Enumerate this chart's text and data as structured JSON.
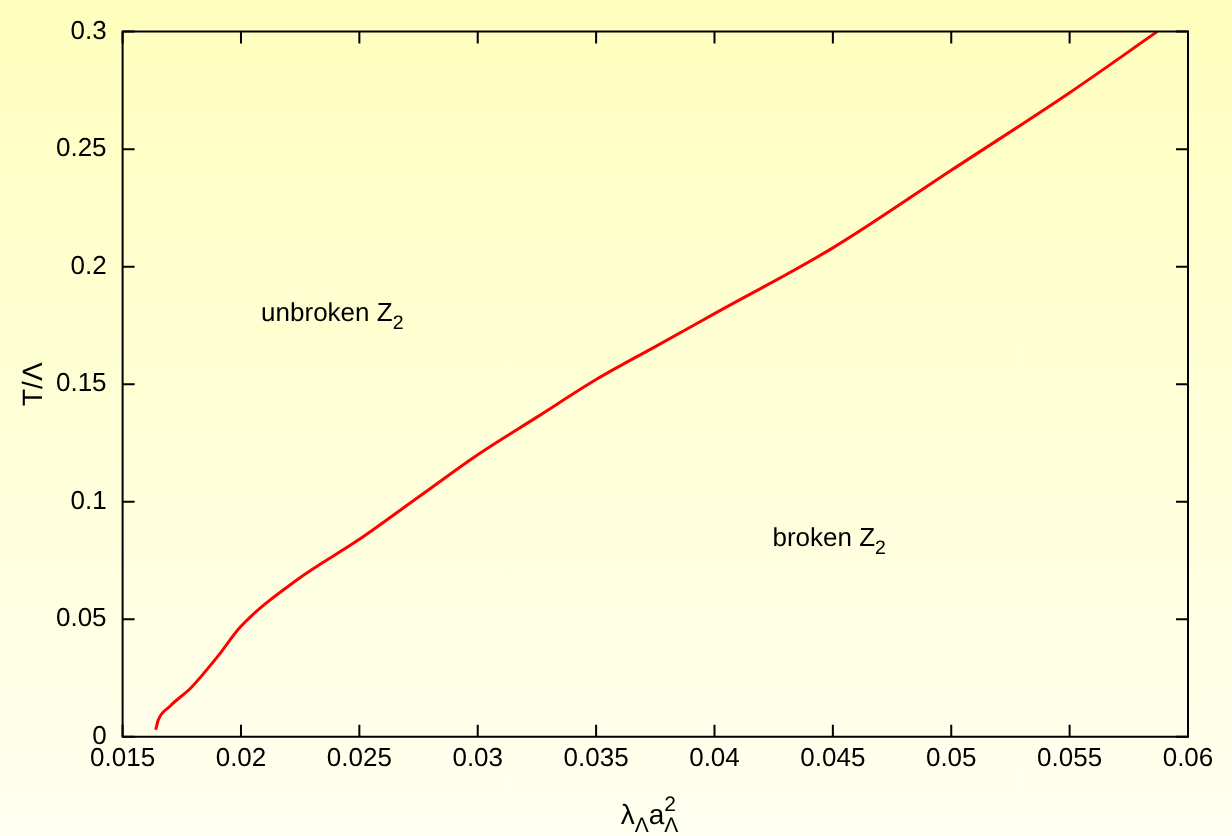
{
  "chart_data": {
    "type": "line",
    "xlabel": "λ$_{Λ}$a$_{Λ}$$^{2}$",
    "ylabel": "T/Λ",
    "x": [
      0.0164,
      0.0165,
      0.017,
      0.0179,
      0.019,
      0.02,
      0.0224,
      0.025,
      0.0275,
      0.03,
      0.0325,
      0.035,
      0.0375,
      0.04,
      0.045,
      0.05,
      0.055,
      0.0587
    ],
    "series": [
      {
        "color": "#ff0000",
        "values": [
          0.003,
          0.007,
          0.013,
          0.021,
          0.034,
          0.047,
          0.067,
          0.084,
          0.102,
          0.12,
          0.136,
          0.152,
          0.166,
          0.18,
          0.208,
          0.241,
          0.274,
          0.3
        ]
      }
    ],
    "annotations": [
      "unbroken Z$_{2}$",
      "broken Z$_{2}$"
    ],
    "xlim": [
      0.015,
      0.06
    ],
    "xticks": [
      0.015,
      0.02,
      0.025,
      0.03,
      0.035,
      0.04,
      0.045,
      0.05,
      0.055,
      0.06
    ],
    "ylim": [
      0,
      0.3
    ],
    "yticks": [
      0,
      0.05,
      0.1,
      0.15,
      0.2,
      0.25,
      0.3
    ],
    "grid": false,
    "legend": false,
    "marker": "none",
    "line_style": "solid"
  }
}
